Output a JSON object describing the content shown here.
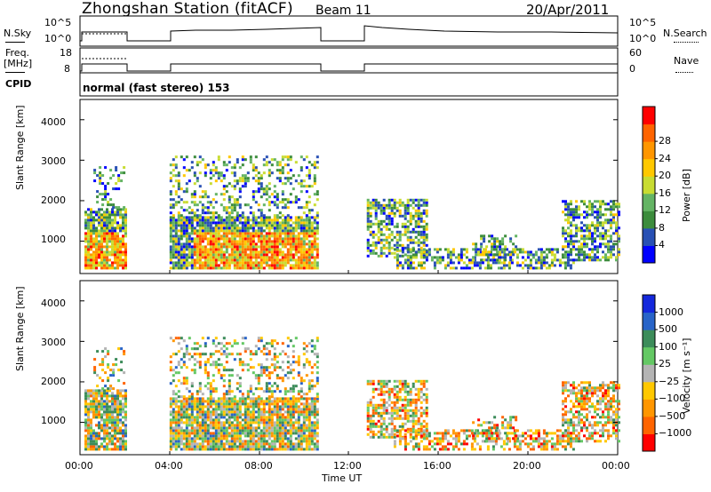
{
  "header": {
    "station": "Zhongshan Station (fitACF)",
    "beam": "Beam 11",
    "date": "20/Apr/2011"
  },
  "panels": {
    "sky": {
      "left_label": "N.Sky",
      "right_label": "N.Search",
      "tick_top": "10^5",
      "tick_bottom": "10^0"
    },
    "freq": {
      "left_label_1": "Freq.",
      "left_label_2": "[MHz]",
      "right_label": "Nave",
      "tick_top_left": "18",
      "tick_bottom_left": "8",
      "tick_top_right": "60",
      "tick_bottom_right": "0"
    },
    "cpid": {
      "label": "CPID",
      "value": "normal (fast stereo) 153"
    }
  },
  "chart_data": [
    {
      "type": "heatmap",
      "name": "power",
      "ylabel": "Slant Range [km]",
      "yticks": [
        "1000",
        "2000",
        "3000",
        "4000"
      ],
      "colorbar_label": "Power [dB]",
      "colorbar_ticks": [
        "4",
        "8",
        "12",
        "16",
        "20",
        "24",
        "28"
      ],
      "colorbar_colors": [
        "#0000ff",
        "#2850b4",
        "#3c8c3c",
        "#64b464",
        "#c8dc32",
        "#ffc800",
        "#ff9600",
        "#ff6400",
        "#ff0000"
      ]
    },
    {
      "type": "heatmap",
      "name": "velocity",
      "ylabel": "Slant Range [km]",
      "yticks": [
        "1000",
        "2000",
        "3000",
        "4000"
      ],
      "colorbar_label": "Velocity [m s⁻¹]",
      "colorbar_ticks": [
        "1000",
        "500",
        "100",
        "25",
        "−25",
        "−100",
        "−500",
        "−1000"
      ],
      "colorbar_colors": [
        "#1428dc",
        "#2864c8",
        "#3c8c5a",
        "#64c864",
        "#b4b4b4",
        "#ffc800",
        "#ff9600",
        "#ff6400",
        "#ff0000"
      ]
    }
  ],
  "xaxis": {
    "ticks": [
      "00:00",
      "04:00",
      "08:00",
      "12:00",
      "16:00",
      "20:00",
      "00:00"
    ],
    "label": "Time UT"
  }
}
